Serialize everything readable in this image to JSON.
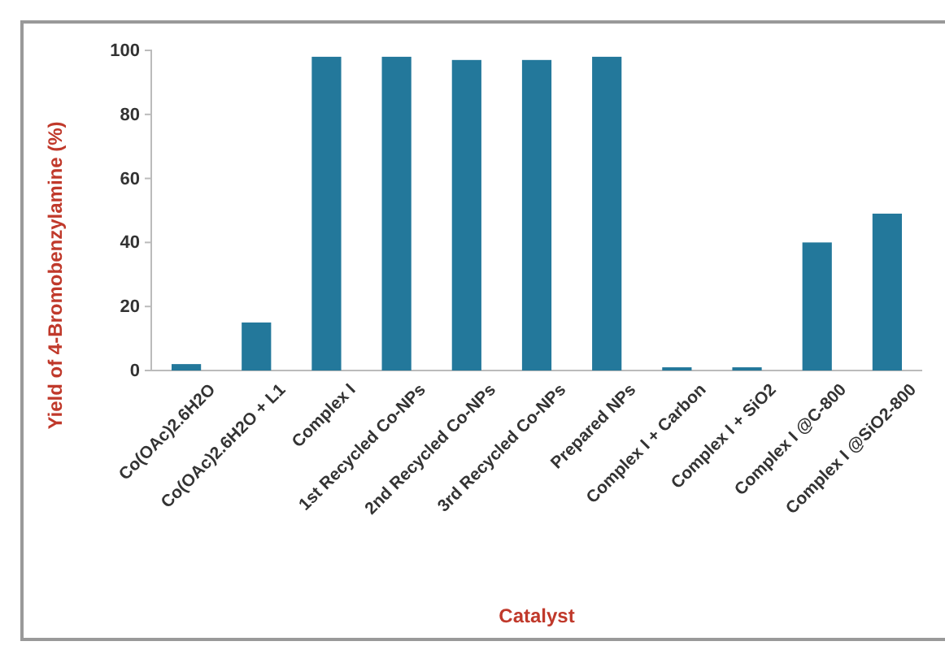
{
  "chart_data": {
    "type": "bar",
    "xlabel": "Catalyst",
    "ylabel": "Yield of 4-Bromobenzylamine (%)",
    "categories": [
      "Co(OAc)2.6H2O",
      "Co(OAc)2.6H2O + L1",
      "Complex I",
      "1st Recycled Co-NPs",
      "2nd Recycled Co-NPs",
      "3rd Recycled Co-NPs",
      "Prepared NPs",
      "Complex I + Carbon",
      "Complex I + SiO2",
      "Complex I @C-800",
      "Complex I @SiO2-800"
    ],
    "values": [
      2,
      15,
      98,
      98,
      97,
      97,
      98,
      1,
      1,
      40,
      49
    ],
    "color": "#23789b",
    "ylim": [
      0,
      100
    ],
    "yticks": [
      0,
      20,
      40,
      60,
      80,
      100
    ]
  }
}
